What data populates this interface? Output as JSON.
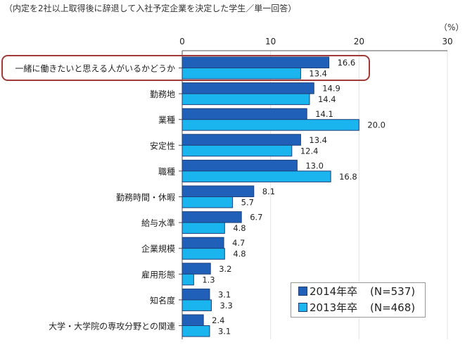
{
  "note": "（内定を2社以上取得後に辞退して入社予定企業を決定した学生／単一回答）",
  "unit_label": "（%）",
  "colors": {
    "series_2014": "#2060b8",
    "series_2013": "#1ab4ee",
    "highlight_border": "#a33a3a",
    "axis": "#555555"
  },
  "legend": [
    {
      "name": "2014年卒",
      "n": "(N=537)"
    },
    {
      "name": "2013年卒",
      "n": "(N=468)"
    }
  ],
  "chart_data": {
    "type": "bar",
    "orientation": "horizontal",
    "categories": [
      "一緒に働きたいと思える人がいるかどうか",
      "勤務地",
      "業種",
      "安定性",
      "職種",
      "勤務時間・休暇",
      "給与水準",
      "企業規模",
      "雇用形態",
      "知名度",
      "大学・大学院の専攻分野との関連"
    ],
    "series": [
      {
        "name": "2014年卒",
        "values": [
          16.6,
          14.9,
          14.1,
          13.4,
          13.0,
          8.1,
          6.7,
          4.7,
          3.2,
          3.1,
          2.4
        ]
      },
      {
        "name": "2013年卒",
        "values": [
          13.4,
          14.4,
          20.0,
          12.4,
          16.8,
          5.7,
          4.8,
          4.8,
          1.3,
          3.3,
          3.1
        ]
      }
    ],
    "xlim": [
      0,
      30
    ],
    "ticks": [
      "0",
      "10",
      "20",
      "30"
    ],
    "highlighted_category": "一緒に働きたいと思える人がいるかどうか",
    "legend_position": "bottom-right"
  }
}
